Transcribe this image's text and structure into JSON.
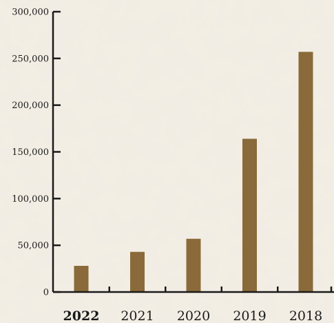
{
  "chart_data": {
    "type": "bar",
    "title": "",
    "xlabel": "",
    "ylabel": "",
    "categories": [
      "2022",
      "2021",
      "2020",
      "2019",
      "2018"
    ],
    "highlighted_category": "2022",
    "values": [
      28000,
      43000,
      57000,
      164000,
      257000
    ],
    "ylim": [
      0,
      300000
    ],
    "yticks": [
      0,
      50000,
      100000,
      150000,
      200000,
      250000,
      300000
    ],
    "ytick_labels": [
      "0",
      "50,000",
      "100,000",
      "150,000",
      "200,000",
      "250,000",
      "300,000"
    ],
    "grid": false,
    "legend": "none",
    "bar_color": "#8a6a3a",
    "axis_color": "#1a1a1a"
  }
}
